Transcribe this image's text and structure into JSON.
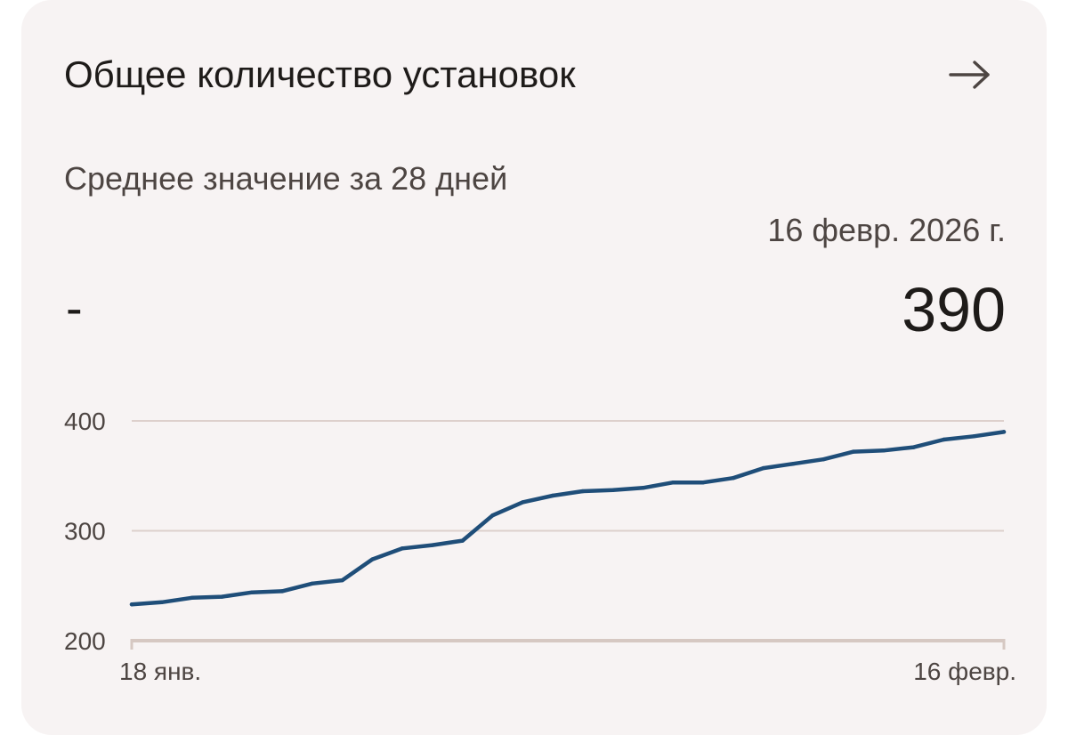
{
  "card": {
    "title": "Общее количество установок",
    "open_icon": "arrow-right-icon",
    "average_label": "Среднее значение за 28 дней",
    "average_value": "-",
    "selected_date": "16 февр. 2026 г.",
    "selected_value": "390"
  },
  "colors": {
    "card_background": "#f7f3f3",
    "line": "#1f4e79",
    "grid": "#ddd0cc",
    "baseline": "#d6c8c2",
    "text_primary": "#1e1b19",
    "text_secondary": "#4d4542"
  },
  "chart_data": {
    "type": "line",
    "title": "",
    "xlabel": "",
    "ylabel": "",
    "ylim": [
      200,
      400
    ],
    "y_ticks": [
      "400",
      "300",
      "200"
    ],
    "x_tick_labels": [
      "18 янв.",
      "16 февр."
    ],
    "x": [
      "18 янв.",
      "19 янв.",
      "20 янв.",
      "21 янв.",
      "22 янв.",
      "23 янв.",
      "24 янв.",
      "25 янв.",
      "26 янв.",
      "27 янв.",
      "28 янв.",
      "29 янв.",
      "30 янв.",
      "31 янв.",
      "1 февр.",
      "2 февр.",
      "3 февр.",
      "4 февр.",
      "5 февр.",
      "6 февр.",
      "7 февр.",
      "8 февр.",
      "9 февр.",
      "10 февр.",
      "11 февр.",
      "12 февр.",
      "13 февр.",
      "14 февр.",
      "15 февр.",
      "16 февр."
    ],
    "series": [
      {
        "values": [
          233,
          235,
          239,
          240,
          244,
          245,
          252,
          255,
          274,
          284,
          287,
          291,
          314,
          326,
          332,
          336,
          337,
          339,
          344,
          344,
          348,
          357,
          361,
          365,
          372,
          373,
          376,
          383,
          386,
          390
        ]
      }
    ],
    "grid": true,
    "legend": "none"
  }
}
